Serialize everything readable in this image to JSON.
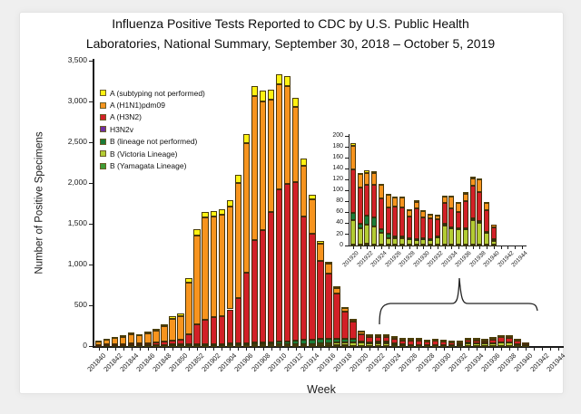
{
  "title": {
    "line1": "Influenza Positive Tests Reported to CDC by U.S. Public Health",
    "line2": "Laboratories, National Summary, September 30, 2018 – October 5, 2019"
  },
  "chart_data": {
    "type": "bar",
    "stacked": true,
    "title": "Influenza Positive Tests Reported to CDC by U.S. Public Health Laboratories, National Summary, September 30, 2018 – October 5, 2019",
    "xlabel": "Week",
    "ylabel": "Number of Positive Specimens",
    "ylim": [
      0,
      3500
    ],
    "y_ticks": [
      "0",
      "500",
      "1,000",
      "1,500",
      "2,000",
      "2,500",
      "3,000",
      "3,500"
    ],
    "grid": false,
    "legend_position": "upper-left",
    "legend_order": [
      6,
      5,
      4,
      3,
      2,
      1,
      0
    ],
    "categories": [
      "201840",
      "201841",
      "201842",
      "201843",
      "201844",
      "201845",
      "201846",
      "201847",
      "201848",
      "201849",
      "201850",
      "201851",
      "201852",
      "201901",
      "201902",
      "201903",
      "201904",
      "201905",
      "201906",
      "201907",
      "201908",
      "201909",
      "201910",
      "201911",
      "201912",
      "201913",
      "201914",
      "201915",
      "201916",
      "201917",
      "201918",
      "201919",
      "201920",
      "201921",
      "201922",
      "201923",
      "201924",
      "201925",
      "201926",
      "201927",
      "201928",
      "201929",
      "201930",
      "201931",
      "201932",
      "201933",
      "201934",
      "201935",
      "201936",
      "201937",
      "201938",
      "201939",
      "201940",
      "201941",
      "201942",
      "201943",
      "201944"
    ],
    "series": [
      {
        "key": "b-yamagata",
        "name": "B (Yamagata Lineage)",
        "color": "#3E9C35",
        "values": [
          1,
          1,
          1,
          1,
          2,
          2,
          2,
          2,
          2,
          3,
          3,
          4,
          4,
          4,
          4,
          4,
          4,
          4,
          5,
          5,
          5,
          5,
          5,
          5,
          6,
          6,
          6,
          6,
          6,
          6,
          6,
          5,
          2,
          2,
          3,
          2,
          2,
          2,
          1,
          1,
          1,
          1,
          1,
          1,
          1,
          1,
          1,
          1,
          1,
          2,
          2,
          1,
          1,
          0,
          0,
          0,
          0
        ]
      },
      {
        "key": "b-victoria",
        "name": "B (Victoria Lineage)",
        "color": "#B3CC33",
        "values": [
          2,
          2,
          3,
          3,
          4,
          4,
          4,
          5,
          5,
          6,
          6,
          8,
          8,
          8,
          8,
          8,
          10,
          10,
          10,
          12,
          12,
          12,
          14,
          14,
          16,
          18,
          20,
          25,
          30,
          35,
          38,
          40,
          45,
          30,
          35,
          33,
          21,
          12,
          13,
          12,
          10,
          9,
          11,
          9,
          14,
          36,
          30,
          28,
          28,
          44,
          40,
          22,
          8,
          0,
          0,
          0,
          0
        ]
      },
      {
        "key": "b-lineage-not-performed",
        "name": "B (lineage not performed)",
        "color": "#1B7B38",
        "values": [
          2,
          2,
          3,
          3,
          4,
          4,
          5,
          5,
          6,
          8,
          8,
          10,
          12,
          12,
          14,
          14,
          16,
          18,
          20,
          25,
          28,
          30,
          35,
          40,
          45,
          50,
          55,
          60,
          55,
          50,
          45,
          40,
          12,
          8,
          17,
          17,
          6,
          8,
          2,
          3,
          2,
          2,
          2,
          2,
          2,
          2,
          2,
          2,
          2,
          3,
          3,
          2,
          2,
          0,
          0,
          0,
          0
        ]
      },
      {
        "key": "h3n2v",
        "name": "H3N2v",
        "color": "#7030A0",
        "values": [
          0,
          0,
          0,
          0,
          0,
          0,
          0,
          0,
          0,
          0,
          0,
          0,
          0,
          0,
          0,
          0,
          0,
          0,
          0,
          0,
          0,
          0,
          0,
          0,
          0,
          0,
          0,
          0,
          0,
          0,
          0,
          0,
          0,
          0,
          0,
          0,
          0,
          0,
          0,
          0,
          0,
          0,
          0,
          0,
          0,
          0,
          0,
          0,
          0,
          0,
          0,
          0,
          0,
          0,
          0,
          0,
          0
        ]
      },
      {
        "key": "a-h3n2",
        "name": "A (H3N2)",
        "color": "#D22027",
        "values": [
          10,
          13,
          16,
          19,
          23,
          21,
          25,
          30,
          38,
          55,
          62,
          120,
          240,
          300,
          330,
          340,
          420,
          560,
          860,
          1260,
          1380,
          1600,
          1870,
          1930,
          1940,
          1520,
          1300,
          950,
          800,
          550,
          330,
          210,
          80,
          66,
          56,
          58,
          57,
          48,
          55,
          54,
          40,
          55,
          38,
          38,
          31,
          38,
          35,
          30,
          50,
          60,
          52,
          40,
          22,
          0,
          0,
          0,
          0
        ]
      },
      {
        "key": "a-h1n1pdm09",
        "name": "A (H1N1)pdm09",
        "color": "#F7941E",
        "values": [
          40,
          60,
          75,
          90,
          114,
          100,
          125,
          145,
          190,
          264,
          293,
          640,
          1090,
          1250,
          1230,
          1240,
          1260,
          1410,
          1590,
          1770,
          1580,
          1370,
          1290,
          1200,
          930,
          620,
          420,
          220,
          120,
          75,
          45,
          30,
          42,
          24,
          22,
          23,
          24,
          23,
          17,
          18,
          11,
          13,
          10,
          7,
          6,
          12,
          21,
          16,
          14,
          14,
          23,
          13,
          5,
          0,
          0,
          0,
          0
        ]
      },
      {
        "key": "a-subtyping-not-performed",
        "name": "A (subtyping not performed)",
        "color": "#FFF212",
        "values": [
          8,
          10,
          12,
          14,
          16,
          15,
          17,
          20,
          22,
          27,
          28,
          48,
          76,
          76,
          74,
          74,
          80,
          98,
          115,
          118,
          125,
          133,
          116,
          121,
          113,
          86,
          59,
          29,
          19,
          14,
          6,
          5,
          6,
          2,
          5,
          2,
          2,
          2,
          2,
          2,
          1,
          2,
          1,
          1,
          1,
          2,
          2,
          2,
          2,
          2,
          2,
          2,
          0,
          0,
          0,
          0,
          0
        ]
      }
    ],
    "inset": {
      "type": "bar",
      "stacked": true,
      "ylim": [
        0,
        200
      ],
      "y_ticks": [
        "0",
        "20",
        "40",
        "60",
        "80",
        "100",
        "120",
        "140",
        "160",
        "180",
        "200"
      ],
      "categories_start": "201920",
      "categories_end": "201944"
    }
  }
}
